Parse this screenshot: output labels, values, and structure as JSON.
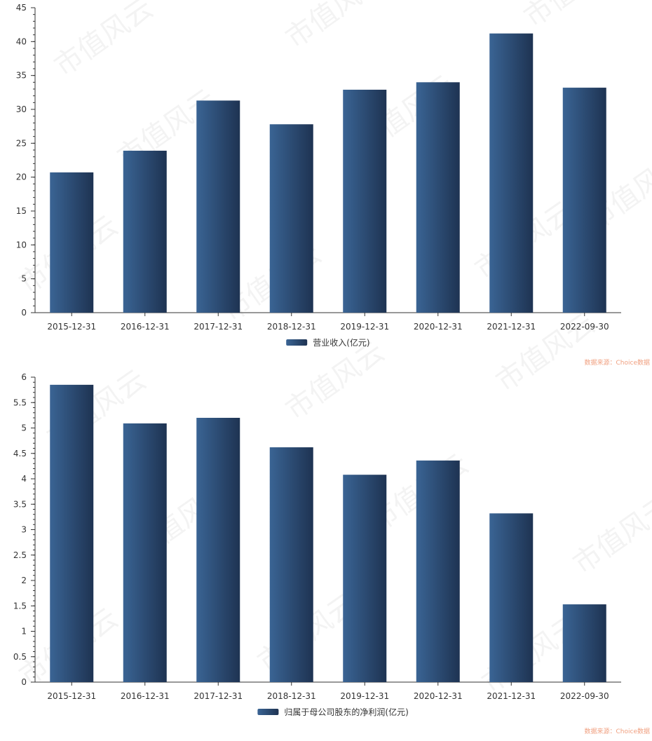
{
  "watermark_text": "市值风云",
  "source_text": "数据来源：Choice数据",
  "bar_color_light": "#3a6494",
  "bar_color_dark": "#1e3352",
  "chart_data": [
    {
      "type": "bar",
      "categories": [
        "2015-12-31",
        "2016-12-31",
        "2017-12-31",
        "2018-12-31",
        "2019-12-31",
        "2020-12-31",
        "2021-12-31",
        "2022-09-30"
      ],
      "series": [
        {
          "name": "营业收入(亿元)",
          "values": [
            20.7,
            23.9,
            31.3,
            27.8,
            32.9,
            34.0,
            41.2,
            33.2
          ]
        }
      ],
      "ylim": [
        0,
        45
      ],
      "yticks": [
        "0",
        "5",
        "10",
        "15",
        "20",
        "25",
        "30",
        "35",
        "40",
        "45"
      ],
      "legend_position": "bottom-center",
      "grid": false
    },
    {
      "type": "bar",
      "categories": [
        "2015-12-31",
        "2016-12-31",
        "2017-12-31",
        "2018-12-31",
        "2019-12-31",
        "2020-12-31",
        "2021-12-31",
        "2022-09-30"
      ],
      "series": [
        {
          "name": "归属于母公司股东的净利润(亿元)",
          "values": [
            5.85,
            5.09,
            5.2,
            4.62,
            4.08,
            4.36,
            3.32,
            1.53
          ]
        }
      ],
      "ylim": [
        0,
        6
      ],
      "yticks": [
        "0",
        "0.5",
        "1",
        "1.5",
        "2",
        "2.5",
        "3",
        "3.5",
        "4",
        "4.5",
        "5",
        "5.5",
        "6"
      ],
      "legend_position": "bottom-center",
      "grid": false
    }
  ]
}
